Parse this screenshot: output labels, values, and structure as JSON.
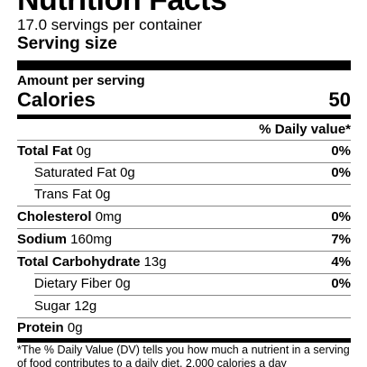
{
  "label": {
    "title": "Nutrition Facts",
    "servings_per_container": "17.0 servings per container",
    "serving_size_label": "Serving size",
    "amount_per_serving": "Amount per serving",
    "calories_label": "Calories",
    "calories_value": "50",
    "daily_value_header": "% Daily value*",
    "nutrients": [
      {
        "name": "Total Fat",
        "amount": "0g",
        "dv": "0%"
      },
      {
        "name": "Saturated Fat",
        "amount": "0g",
        "dv": "0%"
      },
      {
        "name": "Trans Fat",
        "amount": "0g",
        "dv": ""
      },
      {
        "name": "Cholesterol",
        "amount": "0mg",
        "dv": "0%"
      },
      {
        "name": "Sodium",
        "amount": "160mg",
        "dv": "7%"
      },
      {
        "name": "Total Carbohydrate",
        "amount": "13g",
        "dv": "4%"
      },
      {
        "name": "Dietary Fiber",
        "amount": "0g",
        "dv": "0%"
      },
      {
        "name": "Sugar",
        "amount": "12g",
        "dv": ""
      },
      {
        "name": "Protein",
        "amount": "0g",
        "dv": ""
      }
    ],
    "footnote": "*The % Daily Value (DV) tells you how much a nutrient in a serving of food contributes to a daily diet. 2,000 calories a day"
  }
}
